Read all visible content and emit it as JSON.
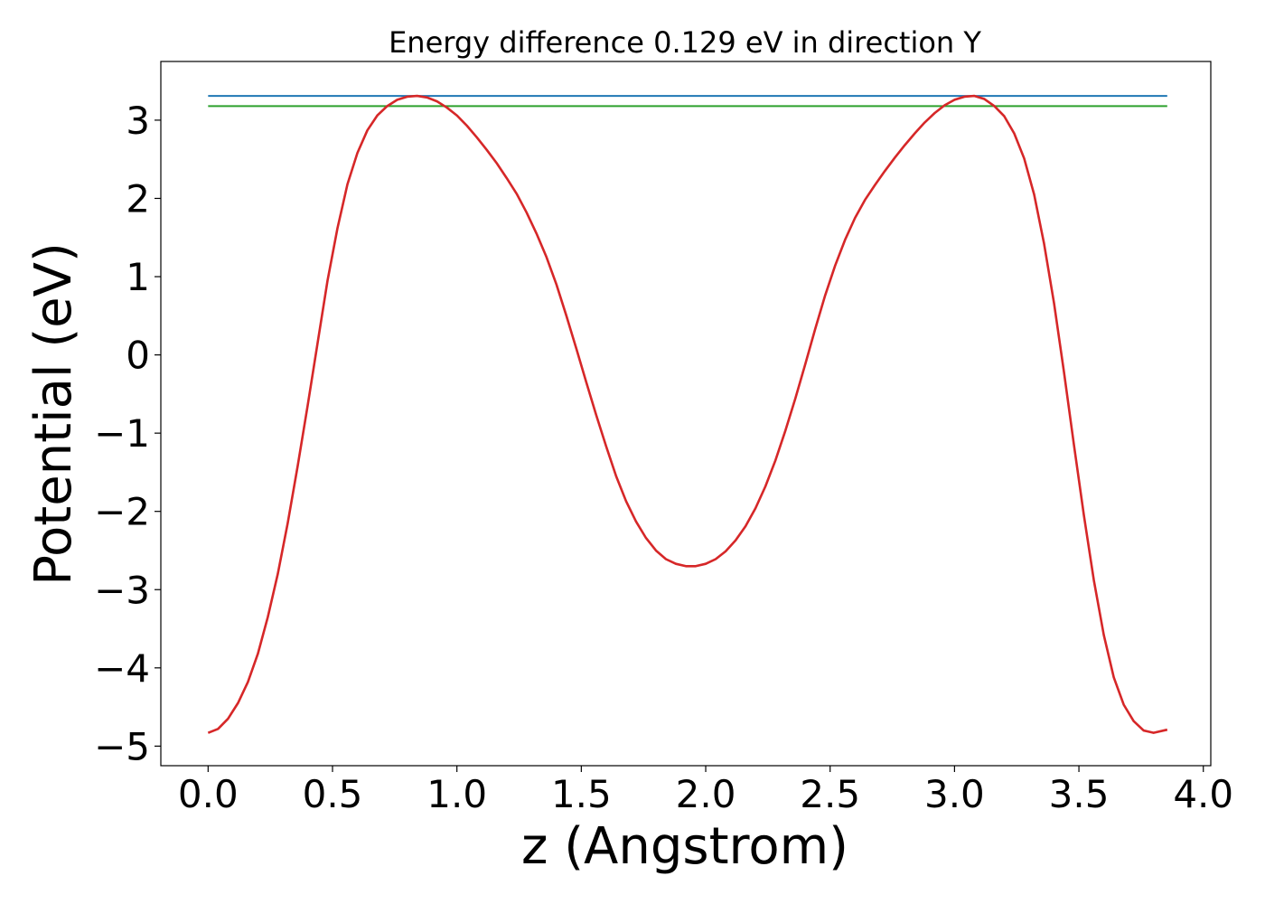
{
  "chart_data": {
    "type": "line",
    "title": "Energy difference 0.129 eV in direction Y",
    "xlabel": "z (Angstrom)",
    "ylabel": "Potential (eV)",
    "xlim": [
      -0.19,
      4.03
    ],
    "ylim": [
      -5.25,
      3.75
    ],
    "xticks": [
      0.0,
      0.5,
      1.0,
      1.5,
      2.0,
      2.5,
      3.0,
      3.5,
      4.0
    ],
    "xtick_labels": [
      "0.0",
      "0.5",
      "1.0",
      "1.5",
      "2.0",
      "2.5",
      "3.0",
      "3.5",
      "4.0"
    ],
    "yticks": [
      -5,
      -4,
      -3,
      -2,
      -1,
      0,
      1,
      2,
      3
    ],
    "ytick_labels": [
      "−5",
      "−4",
      "−3",
      "−2",
      "−1",
      "0",
      "1",
      "2",
      "3"
    ],
    "grid": false,
    "series": [
      {
        "color": "#1f77b4",
        "x": [
          0.0,
          3.855
        ],
        "y": [
          3.31,
          3.31
        ]
      },
      {
        "color": "#2ca02c",
        "x": [
          0.0,
          3.855
        ],
        "y": [
          3.18,
          3.18
        ]
      },
      {
        "color": "#d62728",
        "x": [
          0.0,
          0.04,
          0.08,
          0.12,
          0.16,
          0.2,
          0.24,
          0.28,
          0.32,
          0.36,
          0.4,
          0.44,
          0.48,
          0.52,
          0.56,
          0.6,
          0.64,
          0.68,
          0.72,
          0.76,
          0.8,
          0.84,
          0.88,
          0.92,
          0.96,
          1.0,
          1.04,
          1.08,
          1.12,
          1.16,
          1.2,
          1.24,
          1.28,
          1.32,
          1.36,
          1.4,
          1.44,
          1.48,
          1.52,
          1.56,
          1.6,
          1.64,
          1.68,
          1.72,
          1.76,
          1.8,
          1.84,
          1.88,
          1.92,
          1.96,
          2.0,
          2.04,
          2.08,
          2.12,
          2.16,
          2.2,
          2.24,
          2.28,
          2.32,
          2.36,
          2.4,
          2.44,
          2.48,
          2.52,
          2.56,
          2.6,
          2.64,
          2.68,
          2.72,
          2.76,
          2.8,
          2.84,
          2.88,
          2.92,
          2.96,
          3.0,
          3.04,
          3.08,
          3.12,
          3.16,
          3.2,
          3.24,
          3.28,
          3.32,
          3.36,
          3.4,
          3.44,
          3.48,
          3.52,
          3.56,
          3.6,
          3.64,
          3.68,
          3.72,
          3.76,
          3.8,
          3.855
        ],
        "y": [
          -4.83,
          -4.78,
          -4.65,
          -4.45,
          -4.18,
          -3.82,
          -3.35,
          -2.8,
          -2.15,
          -1.42,
          -0.65,
          0.15,
          0.95,
          1.62,
          2.18,
          2.58,
          2.87,
          3.06,
          3.18,
          3.26,
          3.3,
          3.31,
          3.29,
          3.24,
          3.16,
          3.06,
          2.93,
          2.78,
          2.62,
          2.45,
          2.26,
          2.06,
          1.82,
          1.55,
          1.25,
          0.9,
          0.5,
          0.08,
          -0.35,
          -0.77,
          -1.17,
          -1.55,
          -1.87,
          -2.13,
          -2.34,
          -2.5,
          -2.61,
          -2.67,
          -2.7,
          -2.7,
          -2.67,
          -2.61,
          -2.51,
          -2.37,
          -2.19,
          -1.96,
          -1.68,
          -1.35,
          -0.97,
          -0.56,
          -0.12,
          0.33,
          0.76,
          1.14,
          1.47,
          1.75,
          1.98,
          2.17,
          2.35,
          2.52,
          2.68,
          2.83,
          2.97,
          3.09,
          3.19,
          3.26,
          3.3,
          3.31,
          3.27,
          3.18,
          3.05,
          2.83,
          2.51,
          2.05,
          1.42,
          0.66,
          -0.22,
          -1.15,
          -2.05,
          -2.88,
          -3.58,
          -4.12,
          -4.47,
          -4.68,
          -4.8,
          -4.83,
          -4.79
        ]
      }
    ]
  }
}
